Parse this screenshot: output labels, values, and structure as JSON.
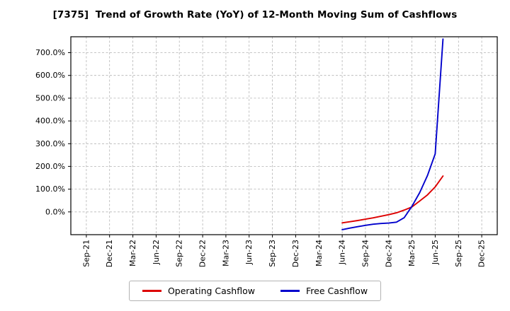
{
  "title": "[7375]  Trend of Growth Rate (YoY) of 12-Month Moving Sum of Cashflows",
  "chart_data": {
    "type": "line",
    "title": "[7375]  Trend of Growth Rate (YoY) of 12-Month Moving Sum of Cashflows",
    "grid": true,
    "grid_style": "dashed",
    "legend_position": "bottom",
    "x_axis": {
      "tick_labels": [
        "Sep-21",
        "Dec-21",
        "Mar-22",
        "Jun-22",
        "Sep-22",
        "Dec-22",
        "Mar-23",
        "Jun-23",
        "Sep-23",
        "Dec-23",
        "Mar-24",
        "Jun-24",
        "Sep-24",
        "Dec-24",
        "Mar-25",
        "Jun-25",
        "Sep-25",
        "Dec-25"
      ],
      "tick_months": [
        0,
        3,
        6,
        9,
        12,
        15,
        18,
        21,
        24,
        27,
        30,
        33,
        36,
        39,
        42,
        45,
        48,
        51
      ],
      "xlim": [
        -2,
        53
      ]
    },
    "y_axis": {
      "tick_values": [
        0,
        100,
        200,
        300,
        400,
        500,
        600,
        700
      ],
      "tick_format": "one-decimal-percent",
      "ylim": [
        -100,
        770
      ]
    },
    "series": [
      {
        "name": "Operating Cashflow",
        "color": "#dd0000",
        "x": [
          33,
          34,
          35,
          36,
          37,
          38,
          39,
          40,
          41,
          42,
          43,
          44,
          45,
          46
        ],
        "values": [
          -48,
          -43,
          -38,
          -32,
          -26,
          -19,
          -12,
          -4,
          8,
          22,
          48,
          75,
          110,
          158
        ]
      },
      {
        "name": "Free Cashflow",
        "color": "#0000cc",
        "x": [
          33,
          34,
          35,
          36,
          37,
          38,
          39,
          40,
          41,
          42,
          43,
          44,
          45,
          46
        ],
        "values": [
          -78,
          -71,
          -65,
          -59,
          -54,
          -51,
          -49,
          -45,
          -25,
          25,
          85,
          160,
          255,
          760
        ]
      }
    ]
  }
}
